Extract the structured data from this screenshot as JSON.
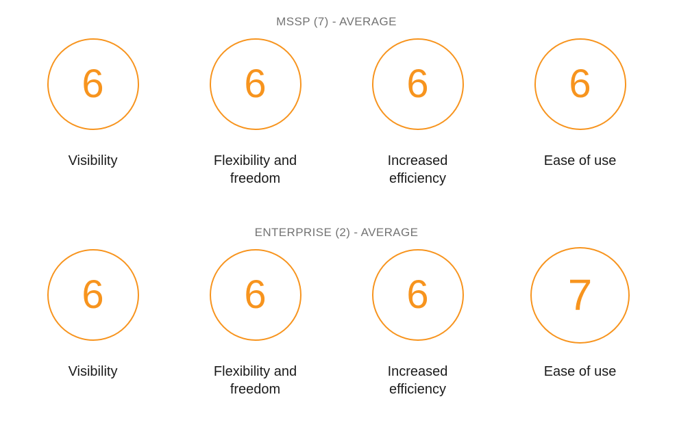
{
  "colors": {
    "accent_orange": "#F7941E",
    "heading_gray": "#737373",
    "label_dark": "#1A1A1A",
    "page_bg": "#FFFFFF"
  },
  "sections": [
    {
      "title": "MSSP (7) - AVERAGE",
      "items": [
        {
          "score": "6",
          "label": "Visibility"
        },
        {
          "score": "6",
          "label": "Flexibility and freedom"
        },
        {
          "score": "6",
          "label": "Increased efficiency"
        },
        {
          "score": "6",
          "label": "Ease of use"
        }
      ]
    },
    {
      "title": "ENTERPRISE (2) - AVERAGE",
      "items": [
        {
          "score": "6",
          "label": "Visibility"
        },
        {
          "score": "6",
          "label": "Flexibility and freedom"
        },
        {
          "score": "6",
          "label": "Increased efficiency"
        },
        {
          "score": "7",
          "label": "Ease of use"
        }
      ]
    }
  ],
  "chart_data": {
    "type": "table",
    "title": "Average scores by respondent group",
    "categories": [
      "Visibility",
      "Flexibility and freedom",
      "Increased efficiency",
      "Ease of use"
    ],
    "series": [
      {
        "name": "MSSP (7) - AVERAGE",
        "values": [
          6,
          6,
          6,
          6
        ]
      },
      {
        "name": "ENTERPRISE (2) - AVERAGE",
        "values": [
          6,
          6,
          6,
          7
        ]
      }
    ],
    "value_range": [
      0,
      10
    ],
    "layout": "two rows of four outlined KPI circles, score centered in circle, category label below"
  }
}
